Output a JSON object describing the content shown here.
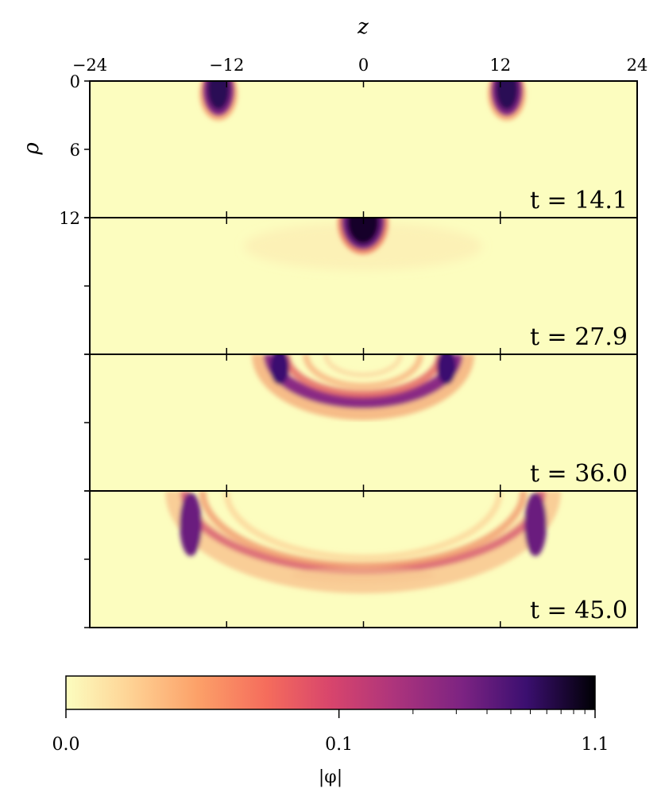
{
  "chart_data": {
    "type": "heatmap",
    "xlabel": "z",
    "ylabel": "ρ",
    "x_ticks": [
      "−24",
      "−12",
      "0",
      "12",
      "24"
    ],
    "x_tick_values": [
      -24,
      -12,
      0,
      12,
      24
    ],
    "xlim": [
      -24,
      24
    ],
    "y_ticks": [
      "0",
      "6",
      "12"
    ],
    "y_tick_values": [
      0,
      6,
      12
    ],
    "ylim": [
      0,
      12
    ],
    "panels": [
      {
        "label": "t = 14.1",
        "t": 14.1
      },
      {
        "label": "t = 27.9",
        "t": 27.9
      },
      {
        "label": "t = 36.0",
        "t": 36.0
      },
      {
        "label": "t = 45.0",
        "t": 45.0
      }
    ],
    "colorbar": {
      "label": "|φ|",
      "ticks": [
        "0.0",
        "0.1",
        "1.1"
      ],
      "tick_values": [
        0.0,
        0.1,
        1.1
      ],
      "colormap": "magma_r"
    }
  }
}
